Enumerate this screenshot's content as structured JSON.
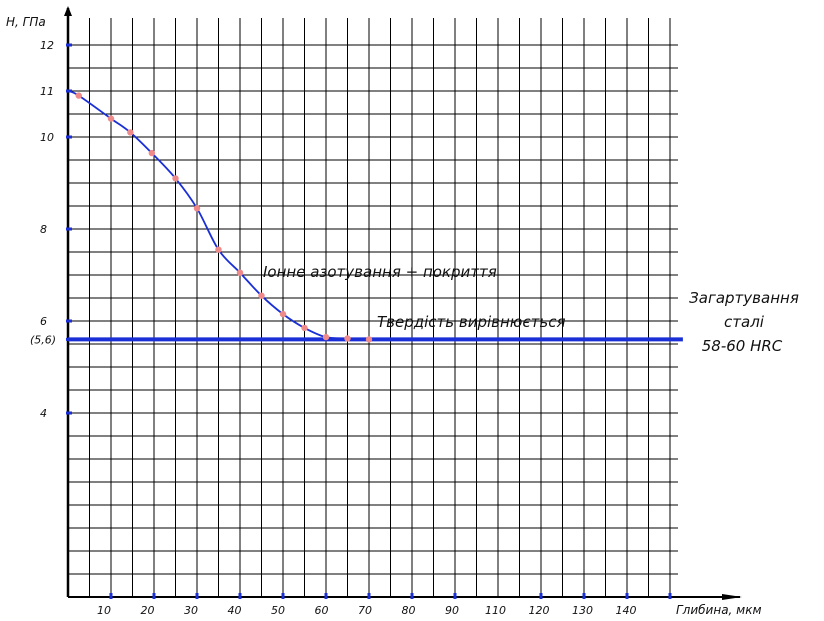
{
  "chart_data": {
    "type": "line",
    "title": "",
    "xlabel": "Глибина, мкм",
    "ylabel": "H, ГПа",
    "xlim": [
      0,
      145
    ],
    "ylim": [
      0,
      12.5
    ],
    "grid": true,
    "x_ticks": [
      10,
      20,
      30,
      40,
      50,
      60,
      70,
      80,
      90,
      110,
      120,
      130,
      140
    ],
    "y_ticks": [
      {
        "value": 12,
        "label": "12"
      },
      {
        "value": 11,
        "label": "11"
      },
      {
        "value": 10,
        "label": "10"
      },
      {
        "value": 8,
        "label": "8"
      },
      {
        "value": 6,
        "label": "6"
      },
      {
        "value": 5.6,
        "label": "(5,6)"
      },
      {
        "value": 4,
        "label": "4"
      }
    ],
    "series": [
      {
        "name": "Іонне азотування + покриття",
        "x": [
          0,
          2.5,
          10,
          14.5,
          19.5,
          25,
          30,
          35,
          40,
          45,
          50,
          55,
          60,
          65,
          70
        ],
        "y": [
          11,
          10.9,
          10.4,
          10.1,
          9.65,
          9.1,
          8.45,
          7.55,
          7.05,
          6.55,
          6.15,
          5.85,
          5.65,
          5.62,
          5.6
        ]
      }
    ],
    "reference_line": {
      "y": 5.6,
      "x_start": 0,
      "x_end": 143
    },
    "annotations": [
      {
        "id": "coating",
        "text": "Іонне азотування + покриття",
        "x": 48,
        "y": 7.1
      },
      {
        "id": "equalize",
        "text": "Твердість вирівнюється",
        "x": 75,
        "y": 6.0
      }
    ],
    "side_label": [
      "Загартування",
      "сталі",
      "58-60 HRC"
    ],
    "colors": {
      "curve": "#1a2fd6",
      "markers": "#ef8a8a",
      "grid": "#000000",
      "reference": "#1a2fd6"
    }
  }
}
